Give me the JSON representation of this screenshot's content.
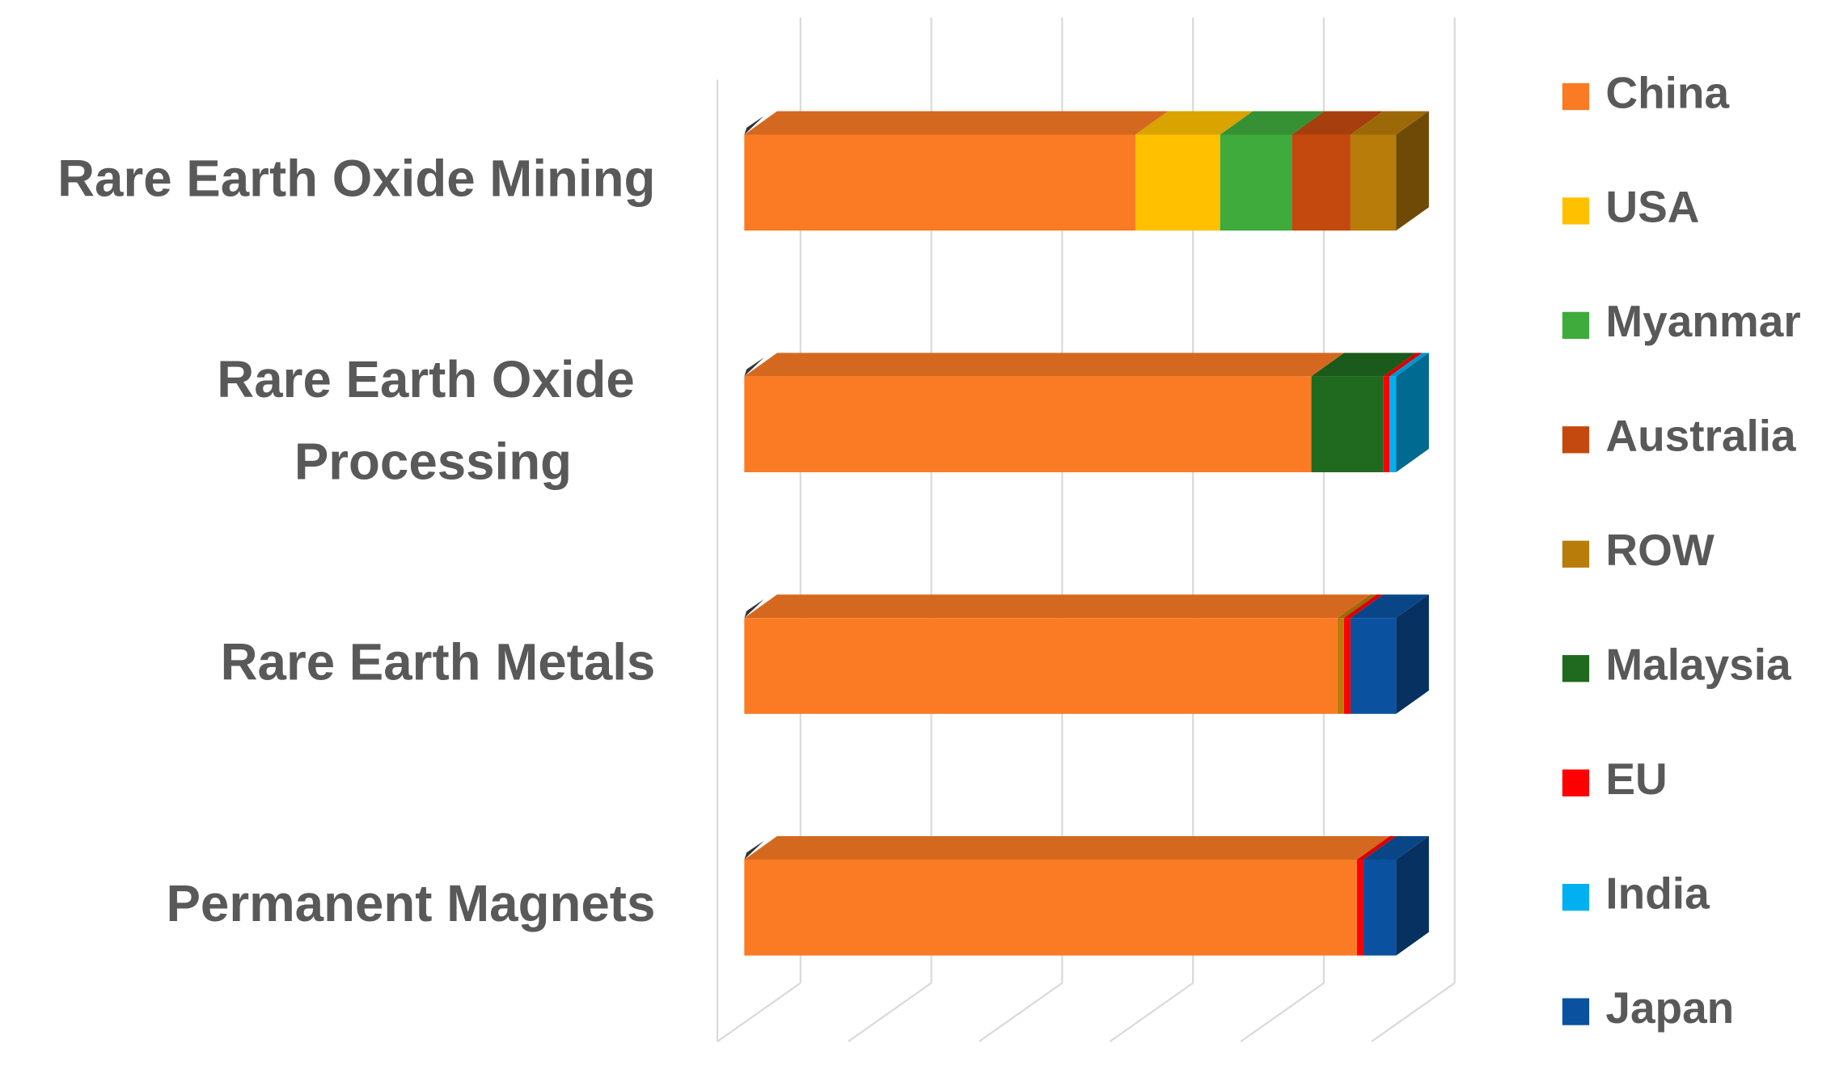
{
  "chart_data": {
    "type": "stacked-bar-3d",
    "categories": [
      "Rare Earth Oxide Mining",
      "Rare Earth Oxide Processing",
      "Rare Earth Metals",
      "Permanent Magnets"
    ],
    "series": [
      {
        "name": "China",
        "color": "#fb7a24",
        "values": [
          60,
          87,
          91,
          94
        ]
      },
      {
        "name": "USA",
        "color": "#ffc000",
        "values": [
          13,
          0,
          0,
          0
        ]
      },
      {
        "name": "Myanmar",
        "color": "#3eab3c",
        "values": [
          11,
          0,
          0,
          0
        ]
      },
      {
        "name": "Australia",
        "color": "#c4490f",
        "values": [
          9,
          0,
          0,
          0
        ]
      },
      {
        "name": "ROW",
        "color": "#b87c0a",
        "values": [
          7,
          0,
          1,
          0
        ]
      },
      {
        "name": "Malaysia",
        "color": "#1f6a1f",
        "values": [
          0,
          11,
          0,
          0
        ]
      },
      {
        "name": "EU",
        "color": "#ff0000",
        "values": [
          0,
          1,
          1,
          1
        ]
      },
      {
        "name": "India",
        "color": "#00b0f0",
        "values": [
          0,
          1,
          0,
          0
        ]
      },
      {
        "name": "Japan",
        "color": "#0a52a0",
        "values": [
          0,
          0,
          7,
          5
        ]
      }
    ],
    "xlim": [
      0,
      100
    ],
    "xticks": [
      0,
      20,
      40,
      60,
      80,
      100
    ],
    "grid": true,
    "legend": "right"
  }
}
